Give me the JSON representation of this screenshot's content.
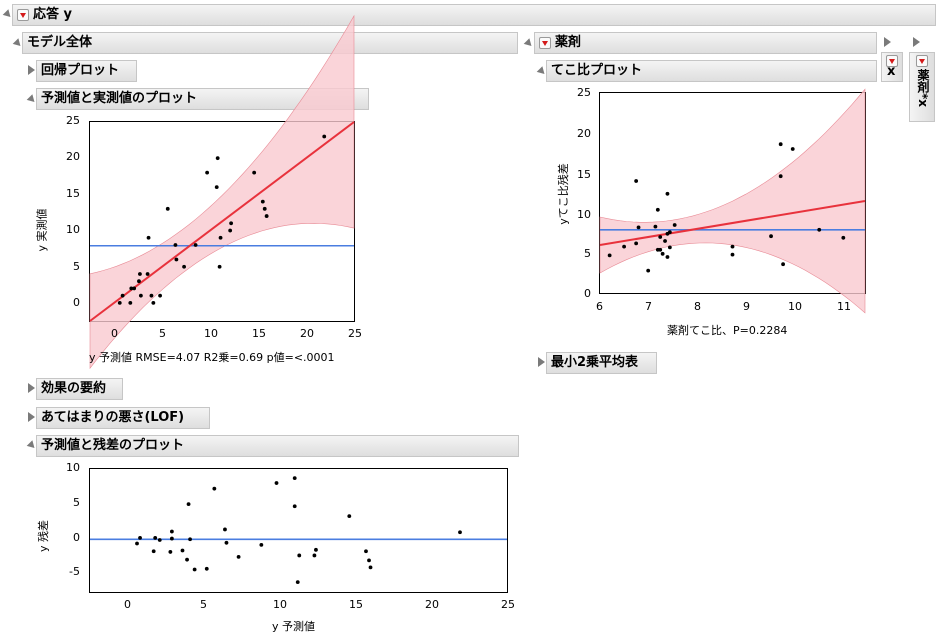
{
  "title": "応答 y",
  "model_section": {
    "title": "モデル全体",
    "collapsed_regression_plot": "回帰プロット",
    "actual_by_predicted": {
      "title": "予測値と実測値のプロット",
      "ylabel": "y 実測値",
      "caption": "y 予測値 RMSE=4.07 R2乗=0.69 p値=<.0001",
      "x_ticks": [
        "0",
        "5",
        "10",
        "15",
        "20",
        "25"
      ],
      "y_ticks": [
        "0",
        "5",
        "10",
        "15",
        "20",
        "25"
      ]
    },
    "effect_summary": "効果の要約",
    "lack_of_fit": "あてはまりの悪さ(LOF)",
    "residual_by_predicted": {
      "title": "予測値と残差のプロット",
      "ylabel": "y 残差",
      "xlabel": "y 予測値",
      "x_ticks": [
        "0",
        "5",
        "10",
        "15",
        "20",
        "25"
      ],
      "y_ticks": [
        "10",
        "5",
        "0",
        "-5"
      ]
    }
  },
  "drug_section": {
    "title": "薬剤",
    "leverage_plot": {
      "title": "てこ比プロット",
      "ylabel": "yてこ比残差",
      "xlabel": "薬剤てこ比、P=0.2284",
      "x_ticks": [
        "6",
        "7",
        "8",
        "9",
        "10",
        "11"
      ],
      "y_ticks": [
        "0",
        "5",
        "10",
        "15",
        "20",
        "25"
      ]
    },
    "lsmeans": "最小2乗平均表"
  },
  "collapsed_x": "x",
  "collapsed_drug_x": "薬剤*x",
  "colors": {
    "fit_line": "#e8323c",
    "band": "#f9c9d0",
    "mean_line": "#4a7de0"
  },
  "chart_data": [
    {
      "type": "scatter",
      "name": "actual_by_predicted",
      "xlabel": "y 予測値",
      "ylabel": "y 実測値",
      "xlim": [
        -2.5,
        25
      ],
      "ylim": [
        -2.5,
        25
      ],
      "mean_y": 7.9,
      "fit_line": [
        [
          -2.5,
          -2.5
        ],
        [
          25,
          25
        ]
      ],
      "points": [
        [
          0.6,
          0
        ],
        [
          0.9,
          1
        ],
        [
          1.7,
          0
        ],
        [
          1.8,
          2
        ],
        [
          2.1,
          2
        ],
        [
          2.6,
          3
        ],
        [
          2.7,
          4
        ],
        [
          2.8,
          1
        ],
        [
          3.5,
          4
        ],
        [
          3.6,
          9
        ],
        [
          3.9,
          1
        ],
        [
          4.1,
          0
        ],
        [
          4.8,
          1
        ],
        [
          5.6,
          13
        ],
        [
          6.4,
          8
        ],
        [
          6.5,
          6
        ],
        [
          7.3,
          5
        ],
        [
          8.5,
          8
        ],
        [
          9.7,
          18
        ],
        [
          10.7,
          16
        ],
        [
          10.8,
          20
        ],
        [
          11.0,
          5
        ],
        [
          11.1,
          9
        ],
        [
          12.1,
          10
        ],
        [
          12.2,
          11
        ],
        [
          14.6,
          18
        ],
        [
          15.5,
          14
        ],
        [
          15.7,
          13
        ],
        [
          15.9,
          12
        ],
        [
          21.9,
          23
        ]
      ]
    },
    {
      "type": "scatter",
      "name": "leverage_plot",
      "xlabel": "薬剤てこ比、P=0.2284",
      "ylabel": "yてこ比残差",
      "xlim": [
        6,
        11.5
      ],
      "ylim": [
        0,
        25
      ],
      "mean_y": 7.9,
      "fit_line": [
        [
          6,
          6.0
        ],
        [
          11.5,
          11.5
        ]
      ],
      "points": [
        [
          6.2,
          4.7
        ],
        [
          6.5,
          5.8
        ],
        [
          6.75,
          6.2
        ],
        [
          6.8,
          8.2
        ],
        [
          6.75,
          14.0
        ],
        [
          7.0,
          2.8
        ],
        [
          7.15,
          8.3
        ],
        [
          7.2,
          10.4
        ],
        [
          7.2,
          5.4
        ],
        [
          7.25,
          5.4
        ],
        [
          7.25,
          7.0
        ],
        [
          7.3,
          4.9
        ],
        [
          7.35,
          6.5
        ],
        [
          7.4,
          7.4
        ],
        [
          7.4,
          12.4
        ],
        [
          7.45,
          7.6
        ],
        [
          7.55,
          8.5
        ],
        [
          7.4,
          4.5
        ],
        [
          7.45,
          5.7
        ],
        [
          8.75,
          5.8
        ],
        [
          8.75,
          4.8
        ],
        [
          9.55,
          7.1
        ],
        [
          9.75,
          18.6
        ],
        [
          9.75,
          14.6
        ],
        [
          9.8,
          3.6
        ],
        [
          10.0,
          18.0
        ],
        [
          10.55,
          7.9
        ],
        [
          11.05,
          6.9
        ]
      ]
    },
    {
      "type": "scatter",
      "name": "residual_by_predicted",
      "xlabel": "y 予測値",
      "ylabel": "y 残差",
      "xlim": [
        -2.5,
        25
      ],
      "ylim": [
        -7.5,
        10
      ],
      "zero_line": 0,
      "points": [
        [
          0.6,
          -0.6
        ],
        [
          0.8,
          0.2
        ],
        [
          1.7,
          -1.7
        ],
        [
          1.8,
          0.2
        ],
        [
          2.1,
          -0.1
        ],
        [
          2.8,
          -1.8
        ],
        [
          2.9,
          1.1
        ],
        [
          2.9,
          0.1
        ],
        [
          3.6,
          -1.6
        ],
        [
          3.9,
          -2.9
        ],
        [
          4.0,
          5.0
        ],
        [
          4.1,
          0.0
        ],
        [
          4.4,
          -4.3
        ],
        [
          5.2,
          -4.2
        ],
        [
          5.7,
          7.2
        ],
        [
          6.4,
          1.4
        ],
        [
          6.5,
          -0.5
        ],
        [
          7.3,
          -2.5
        ],
        [
          8.8,
          -0.8
        ],
        [
          9.8,
          8.0
        ],
        [
          11.0,
          8.7
        ],
        [
          11.0,
          4.7
        ],
        [
          11.2,
          -6.1
        ],
        [
          11.3,
          -2.3
        ],
        [
          12.3,
          -2.3
        ],
        [
          12.4,
          -1.5
        ],
        [
          14.6,
          3.3
        ],
        [
          15.7,
          -1.7
        ],
        [
          15.9,
          -3.0
        ],
        [
          16.0,
          -4.0
        ],
        [
          21.9,
          1.0
        ]
      ]
    }
  ]
}
